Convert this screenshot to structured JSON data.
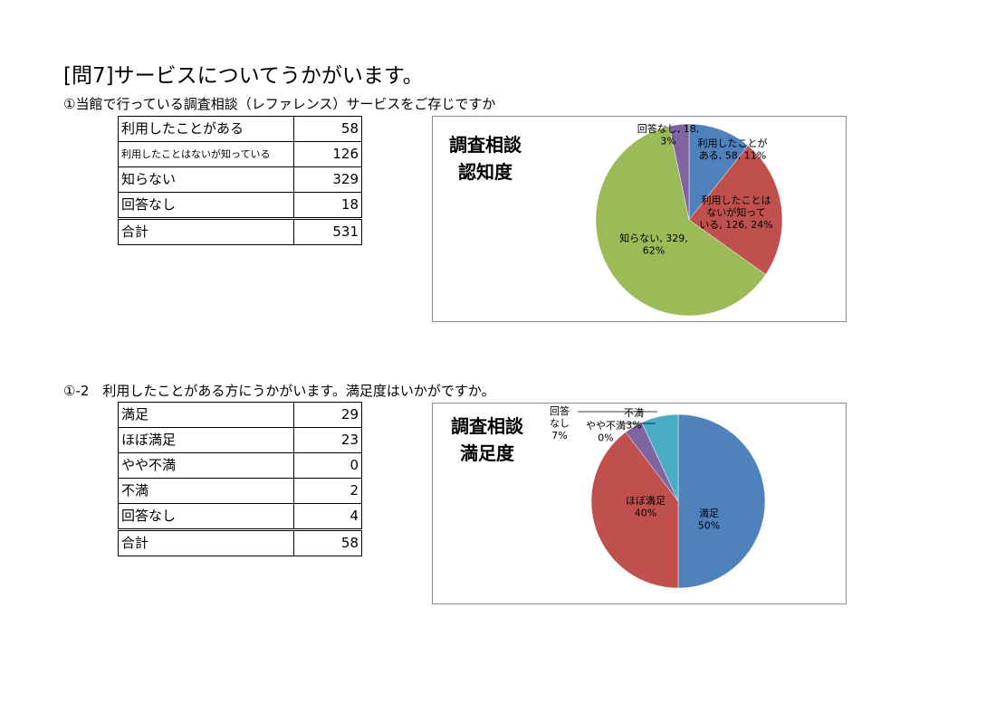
{
  "page": {
    "title": "[問7]サービスについてうかがいます。"
  },
  "q1": {
    "title": "①当館で行っている調査相談（レファレンス）サービスをご存じですか",
    "rows": [
      {
        "label": "利用したことがある",
        "value": "58"
      },
      {
        "label": "利用したことはないが知っている",
        "value": "126"
      },
      {
        "label": "知らない",
        "value": "329"
      },
      {
        "label": "回答なし",
        "value": "18"
      }
    ],
    "total": {
      "label": "合計",
      "value": "531"
    }
  },
  "q2": {
    "title": "①-2　利用したことがある方にうかがいます。満足度はいかがですか。",
    "rows": [
      {
        "label": "満足",
        "value": "29"
      },
      {
        "label": "ほぼ満足",
        "value": "23"
      },
      {
        "label": "やや不満",
        "value": "0"
      },
      {
        "label": "不満",
        "value": "2"
      },
      {
        "label": "回答なし",
        "value": "4"
      }
    ],
    "total": {
      "label": "合計",
      "value": "58"
    }
  },
  "chart_data": [
    {
      "type": "pie",
      "title": [
        "調査相談",
        "認知度"
      ],
      "categories": [
        "利用したことがある",
        "利用したことはないが知っている",
        "知らない",
        "回答なし"
      ],
      "values": [
        58,
        126,
        329,
        18
      ],
      "colors": [
        "#4F81BD",
        "#C0504D",
        "#9BBB59",
        "#8064A2"
      ],
      "data_labels": [
        [
          "利用したことが",
          "ある, 58, 11%"
        ],
        [
          "利用したことは",
          "ないが知って",
          "いる, 126, 24%"
        ],
        [
          "知らない, 329,",
          "62%"
        ],
        [
          "回答なし, 18,",
          "3%"
        ]
      ]
    },
    {
      "type": "pie",
      "title": [
        "調査相談",
        "満足度"
      ],
      "categories": [
        "満足",
        "ほぼ満足",
        "やや不満",
        "不満",
        "回答なし"
      ],
      "values": [
        29,
        23,
        0,
        2,
        4
      ],
      "colors": [
        "#4F81BD",
        "#C0504D",
        "#9BBB59",
        "#8064A2",
        "#4BACC6"
      ],
      "data_labels": [
        [
          "満足",
          "50%"
        ],
        [
          "ほぼ満足",
          "40%"
        ],
        [
          "やや不満",
          "0%"
        ],
        [
          "不満",
          "3%"
        ],
        [
          "回答",
          "なし",
          "7%"
        ]
      ]
    }
  ]
}
